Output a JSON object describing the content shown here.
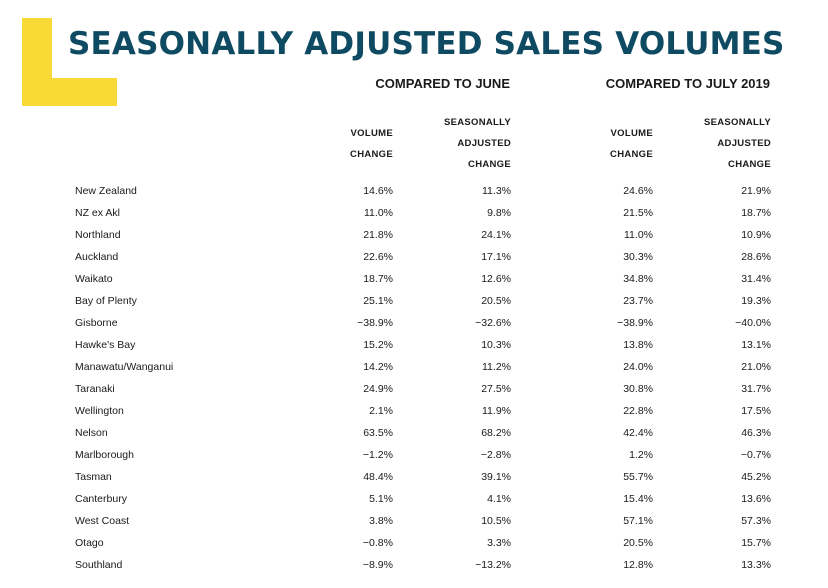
{
  "title": "SEASONALLY ADJUSTED SALES VOLUMES",
  "groups": {
    "june": "COMPARED TO JUNE",
    "july": "COMPARED TO JULY 2019"
  },
  "columns": {
    "june_volume": [
      "VOLUME",
      "CHANGE"
    ],
    "june_sa": [
      "SEASONALLY",
      "ADJUSTED",
      "CHANGE"
    ],
    "july_volume": [
      "VOLUME",
      "CHANGE"
    ],
    "july_sa": [
      "SEASONALLY",
      "ADJUSTED",
      "CHANGE"
    ]
  },
  "colors": {
    "title": "#0e4b63",
    "accent": "#f9d936"
  },
  "rows": [
    {
      "region": "New Zealand",
      "june_volume": "14.6%",
      "june_sa": "11.3%",
      "july_volume": "24.6%",
      "july_sa": "21.9%"
    },
    {
      "region": "NZ ex Akl",
      "june_volume": "11.0%",
      "june_sa": "9.8%",
      "july_volume": "21.5%",
      "july_sa": "18.7%"
    },
    {
      "region": "Northland",
      "june_volume": "21.8%",
      "june_sa": "24.1%",
      "july_volume": "11.0%",
      "july_sa": "10.9%"
    },
    {
      "region": "Auckland",
      "june_volume": "22.6%",
      "june_sa": "17.1%",
      "july_volume": "30.3%",
      "july_sa": "28.6%"
    },
    {
      "region": "Waikato",
      "june_volume": "18.7%",
      "june_sa": "12.6%",
      "july_volume": "34.8%",
      "july_sa": "31.4%"
    },
    {
      "region": "Bay of Plenty",
      "june_volume": "25.1%",
      "june_sa": "20.5%",
      "july_volume": "23.7%",
      "july_sa": "19.3%"
    },
    {
      "region": "Gisborne",
      "june_volume": "−38.9%",
      "june_sa": "−32.6%",
      "july_volume": "−38.9%",
      "july_sa": "−40.0%"
    },
    {
      "region": "Hawke's Bay",
      "june_volume": "15.2%",
      "june_sa": "10.3%",
      "july_volume": "13.8%",
      "july_sa": "13.1%"
    },
    {
      "region": "Manawatu/Wanganui",
      "june_volume": "14.2%",
      "june_sa": "11.2%",
      "july_volume": "24.0%",
      "july_sa": "21.0%"
    },
    {
      "region": "Taranaki",
      "june_volume": "24.9%",
      "june_sa": "27.5%",
      "july_volume": "30.8%",
      "july_sa": "31.7%"
    },
    {
      "region": "Wellington",
      "june_volume": "2.1%",
      "june_sa": "11.9%",
      "july_volume": "22.8%",
      "july_sa": "17.5%"
    },
    {
      "region": "Nelson",
      "june_volume": "63.5%",
      "june_sa": "68.2%",
      "july_volume": "42.4%",
      "july_sa": "46.3%"
    },
    {
      "region": "Marlborough",
      "june_volume": "−1.2%",
      "june_sa": "−2.8%",
      "july_volume": "1.2%",
      "july_sa": "−0.7%"
    },
    {
      "region": "Tasman",
      "june_volume": "48.4%",
      "june_sa": "39.1%",
      "july_volume": "55.7%",
      "july_sa": "45.2%"
    },
    {
      "region": "Canterbury",
      "june_volume": "5.1%",
      "june_sa": "4.1%",
      "july_volume": "15.4%",
      "july_sa": "13.6%"
    },
    {
      "region": "West Coast",
      "june_volume": "3.8%",
      "june_sa": "10.5%",
      "july_volume": "57.1%",
      "july_sa": "57.3%"
    },
    {
      "region": "Otago",
      "june_volume": "−0.8%",
      "june_sa": "3.3%",
      "july_volume": "20.5%",
      "july_sa": "15.7%"
    },
    {
      "region": "Southland",
      "june_volume": "−8.9%",
      "june_sa": "−13.2%",
      "july_volume": "12.8%",
      "july_sa": "13.3%"
    }
  ]
}
